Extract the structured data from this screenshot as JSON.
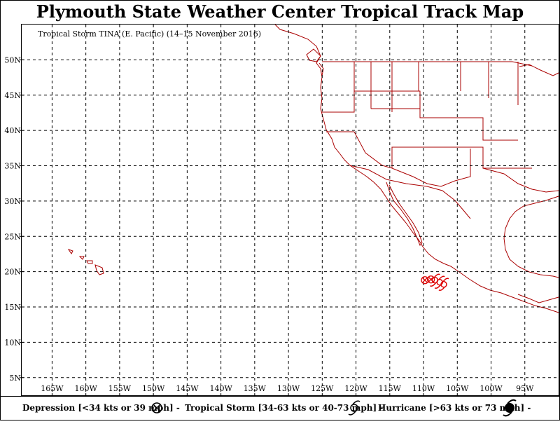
{
  "header": {
    "title": "Plymouth State Weather Center Tropical Track Map"
  },
  "map": {
    "subtitle": "Tropical Storm TINA (E. Pacific) (14–15 November 2016)",
    "lat_ticks": [
      "5N",
      "10N",
      "15N",
      "20N",
      "25N",
      "30N",
      "35N",
      "40N",
      "45N",
      "50N"
    ],
    "lon_ticks": [
      "165W",
      "160W",
      "155W",
      "150W",
      "145W",
      "140W",
      "135W",
      "130W",
      "125W",
      "120W",
      "115W",
      "110W",
      "105W",
      "100W",
      "95W"
    ],
    "lat_values": [
      5,
      10,
      15,
      20,
      25,
      30,
      35,
      40,
      45,
      50
    ],
    "lon_values": [
      -165,
      -160,
      -155,
      -150,
      -145,
      -140,
      -135,
      -130,
      -125,
      -120,
      -115,
      -110,
      -105,
      -100,
      -95
    ],
    "lat_range": [
      2.5,
      55
    ],
    "lon_range": [
      -169.5,
      -90
    ],
    "grid": true,
    "colors": {
      "track": "#dd0000",
      "boundaries": "#aa0000",
      "grid": "#000000",
      "text": "#000000"
    },
    "storm_track": [
      {
        "lat": 18.8,
        "lon": -109.8,
        "category": "depression"
      },
      {
        "lat": 18.9,
        "lon": -108.9,
        "category": "depression"
      },
      {
        "lat": 18.8,
        "lon": -108.3,
        "category": "tropical-storm"
      },
      {
        "lat": 18.5,
        "lon": -107.6,
        "category": "tropical-storm"
      },
      {
        "lat": 18.2,
        "lon": -107.0,
        "category": "tropical-storm"
      }
    ]
  },
  "legend": {
    "depression_label": "Depression [<34 kts or 39 mph] -",
    "depression_icon": "circle-x-icon",
    "storm_label": "Tropical Storm [34-63 kts or 40-73 mph] -",
    "storm_icon": "tropical-storm-icon",
    "hurricane_label": "Hurricane [>63 kts or 73 mph] -",
    "hurricane_icon": "hurricane-icon"
  }
}
